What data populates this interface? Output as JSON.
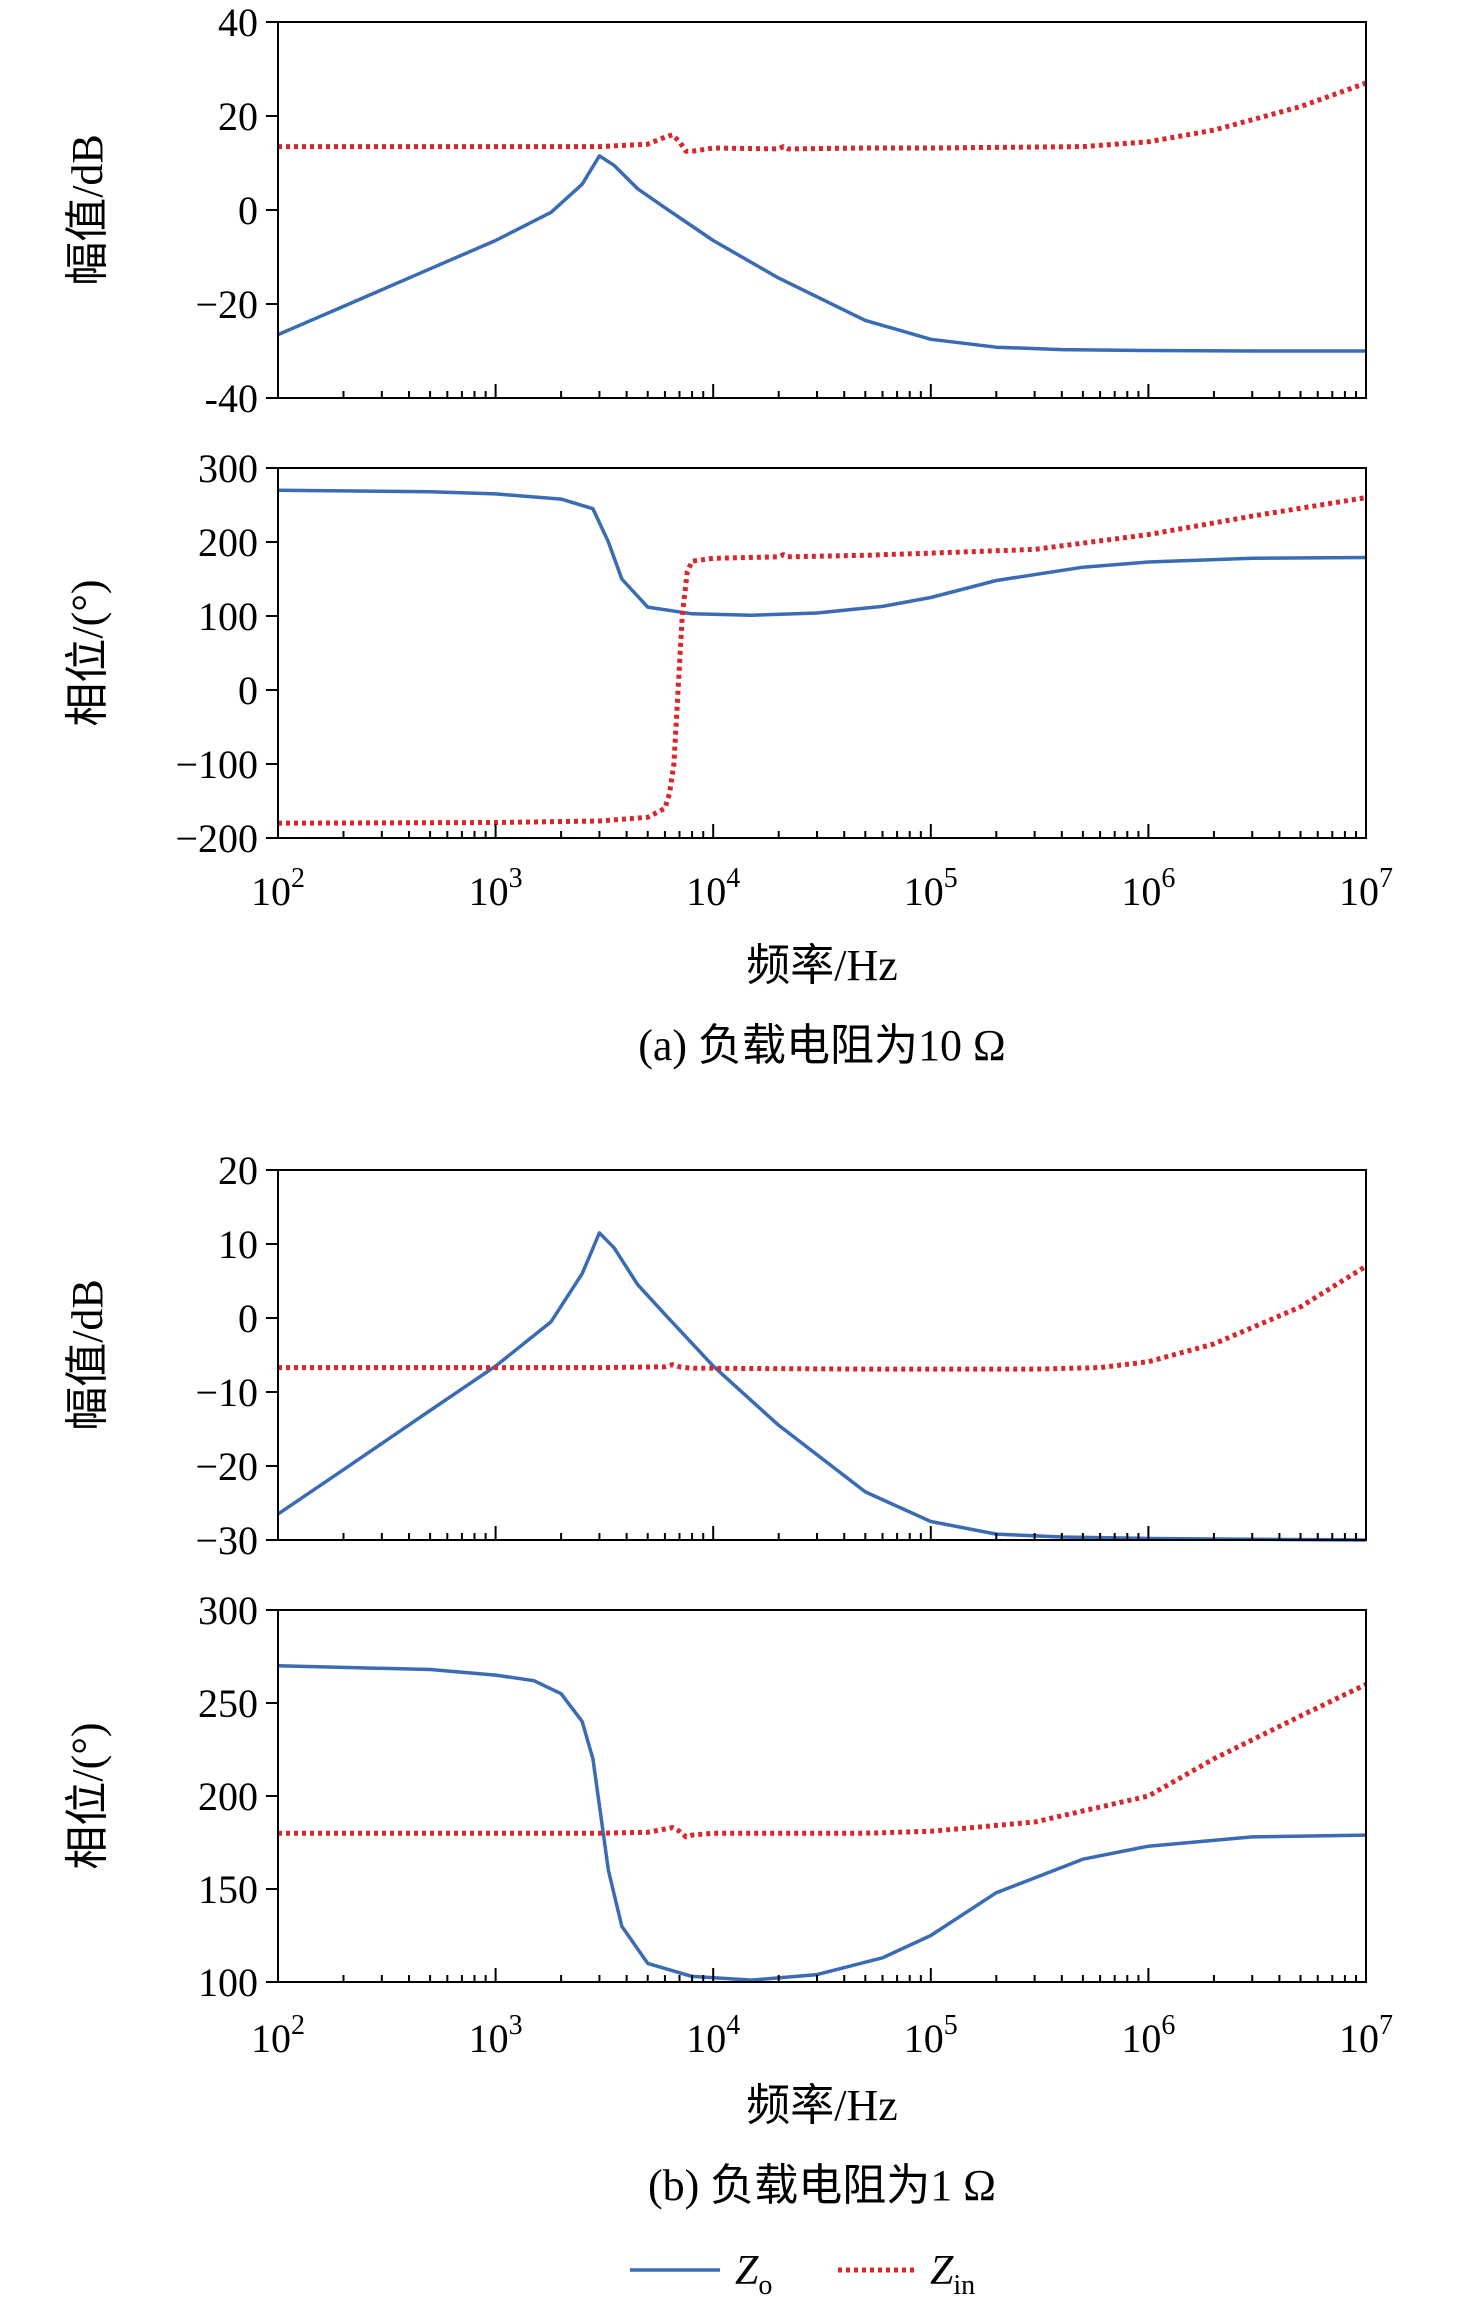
{
  "chart_data": [
    {
      "type": "line",
      "caption": "(a) 负载电阻为10 Ω",
      "xlabel": "频率/Hz",
      "x_scale": "log",
      "xlim": [
        100,
        10000000
      ],
      "x_ticks": [
        {
          "value": 100,
          "base": "10",
          "exp": "2"
        },
        {
          "value": 1000,
          "base": "10",
          "exp": "3"
        },
        {
          "value": 10000,
          "base": "10",
          "exp": "4"
        },
        {
          "value": 100000,
          "base": "10",
          "exp": "5"
        },
        {
          "value": 1000000,
          "base": "10",
          "exp": "6"
        },
        {
          "value": 10000000,
          "base": "10",
          "exp": "7"
        }
      ],
      "panels": [
        {
          "ylabel": "幅值/dB",
          "ylim": [
            -40,
            40
          ],
          "yticks": [
            "-40",
            "−20",
            "0",
            "20",
            "40"
          ],
          "series": [
            {
              "name": "Zo",
              "color": "#3a6bb5",
              "style": "solid",
              "x": [
                100,
                200,
                500,
                1000,
                1800,
                2500,
                3000,
                3500,
                4500,
                6000,
                10000,
                20000,
                50000,
                100000,
                200000,
                400000,
                1000000,
                3000000,
                10000000
              ],
              "y": [
                -26.5,
                -20.5,
                -12.5,
                -6.5,
                -0.5,
                5.5,
                11.5,
                9.5,
                4.5,
                0.5,
                -6.5,
                -14.5,
                -23.5,
                -27.5,
                -29.2,
                -29.7,
                -29.9,
                -30,
                -30
              ]
            },
            {
              "name": "Zin",
              "color": "#d9262c",
              "style": "dotted",
              "x": [
                100,
                1000,
                3000,
                5000,
                6000,
                6500,
                7000,
                7500,
                8000,
                10000,
                20000,
                21000,
                22000,
                50000,
                100000,
                500000,
                1000000,
                2000000,
                5000000,
                10000000
              ],
              "y": [
                13.5,
                13.5,
                13.5,
                14,
                15.5,
                16,
                14.5,
                12.5,
                12.5,
                13.2,
                13,
                13.5,
                13,
                13.2,
                13.2,
                13.5,
                14.5,
                17,
                22,
                27
              ]
            }
          ]
        },
        {
          "ylabel": "相位/(°)",
          "ylim": [
            -200,
            300
          ],
          "yticks": [
            "−200",
            "−100",
            "0",
            "100",
            "200",
            "300"
          ],
          "series": [
            {
              "name": "Zo",
              "color": "#3a6bb5",
              "style": "solid",
              "x": [
                100,
                500,
                1000,
                2000,
                2800,
                3300,
                3800,
                5000,
                8000,
                15000,
                30000,
                60000,
                100000,
                200000,
                500000,
                1000000,
                3000000,
                10000000
              ],
              "y": [
                270,
                268,
                265,
                258,
                245,
                200,
                150,
                112,
                103,
                101,
                104,
                113,
                125,
                148,
                166,
                173,
                178,
                179
              ]
            },
            {
              "name": "Zin",
              "color": "#d9262c",
              "style": "dotted",
              "x": [
                100,
                1000,
                3000,
                5000,
                6000,
                6300,
                6600,
                6900,
                7200,
                7600,
                8000,
                10000,
                20000,
                21000,
                22000,
                50000,
                100000,
                300000,
                1000000,
                3000000,
                10000000
              ],
              "y": [
                -180,
                -179,
                -177,
                -172,
                -160,
                -140,
                -100,
                0,
                100,
                160,
                174,
                178,
                180,
                183,
                180,
                182,
                185,
                190,
                210,
                235,
                260
              ]
            }
          ]
        }
      ]
    },
    {
      "type": "line",
      "caption": "(b) 负载电阻为1 Ω",
      "xlabel": "频率/Hz",
      "x_scale": "log",
      "xlim": [
        100,
        10000000
      ],
      "x_ticks": [
        {
          "value": 100,
          "base": "10",
          "exp": "2"
        },
        {
          "value": 1000,
          "base": "10",
          "exp": "3"
        },
        {
          "value": 10000,
          "base": "10",
          "exp": "4"
        },
        {
          "value": 100000,
          "base": "10",
          "exp": "5"
        },
        {
          "value": 1000000,
          "base": "10",
          "exp": "6"
        },
        {
          "value": 10000000,
          "base": "10",
          "exp": "7"
        }
      ],
      "panels": [
        {
          "ylabel": "幅值/dB",
          "ylim": [
            -30,
            20
          ],
          "yticks": [
            "−30",
            "−20",
            "−10",
            "0",
            "10",
            "20"
          ],
          "series": [
            {
              "name": "Zo",
              "color": "#3a6bb5",
              "style": "solid",
              "x": [
                100,
                200,
                500,
                1000,
                1800,
                2500,
                3000,
                3500,
                4500,
                6000,
                10000,
                20000,
                50000,
                100000,
                200000,
                400000,
                1000000,
                3000000,
                10000000
              ],
              "y": [
                -26.5,
                -20.5,
                -12.5,
                -6.5,
                -0.5,
                6,
                11.5,
                9.5,
                4.5,
                0.5,
                -6.5,
                -14.5,
                -23.5,
                -27.5,
                -29.2,
                -29.6,
                -29.8,
                -29.9,
                -30
              ]
            },
            {
              "name": "Zin",
              "color": "#d9262c",
              "style": "dotted",
              "x": [
                100,
                1000,
                3000,
                6000,
                6500,
                7000,
                8000,
                10000,
                50000,
                100000,
                300000,
                600000,
                1000000,
                2000000,
                5000000,
                10000000
              ],
              "y": [
                -6.7,
                -6.7,
                -6.7,
                -6.6,
                -6.3,
                -6.6,
                -6.8,
                -6.8,
                -6.9,
                -6.9,
                -6.9,
                -6.7,
                -5.9,
                -3.5,
                1.5,
                7
              ]
            }
          ]
        },
        {
          "ylabel": "相位/(°)",
          "ylim": [
            100,
            300
          ],
          "yticks": [
            "100",
            "150",
            "200",
            "250",
            "300"
          ],
          "series": [
            {
              "name": "Zo",
              "color": "#3a6bb5",
              "style": "solid",
              "x": [
                100,
                500,
                1000,
                1500,
                2000,
                2500,
                2800,
                3000,
                3300,
                3800,
                5000,
                8000,
                15000,
                30000,
                60000,
                100000,
                200000,
                500000,
                1000000,
                3000000,
                10000000
              ],
              "y": [
                270,
                268,
                265,
                262,
                255,
                240,
                220,
                195,
                160,
                130,
                110,
                103,
                101,
                104,
                113,
                125,
                148,
                166,
                173,
                178,
                179
              ]
            },
            {
              "name": "Zin",
              "color": "#d9262c",
              "style": "dotted",
              "x": [
                100,
                1000,
                3000,
                5000,
                6500,
                7000,
                7500,
                8000,
                10000,
                50000,
                100000,
                300000,
                1000000,
                2000000,
                5000000,
                10000000
              ],
              "y": [
                180,
                180,
                180,
                180.5,
                183,
                181,
                178,
                179,
                180,
                180,
                181,
                186,
                200,
                220,
                243,
                260
              ]
            }
          ]
        }
      ]
    }
  ],
  "legend": [
    {
      "main": "Z",
      "sub": "o",
      "color": "#3a6bb5",
      "style": "solid"
    },
    {
      "main": "Z",
      "sub": "in",
      "color": "#d9262c",
      "style": "dotted"
    }
  ]
}
